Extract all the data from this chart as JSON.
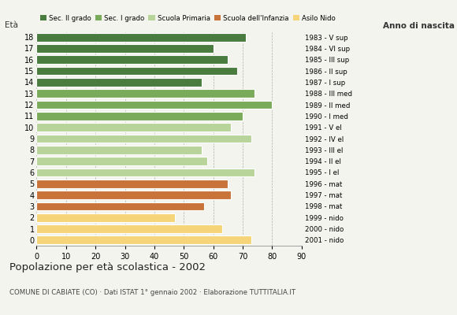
{
  "ages": [
    18,
    17,
    16,
    15,
    14,
    13,
    12,
    11,
    10,
    9,
    8,
    7,
    6,
    5,
    4,
    3,
    2,
    1,
    0
  ],
  "values": [
    71,
    60,
    65,
    68,
    56,
    74,
    80,
    70,
    66,
    73,
    56,
    58,
    74,
    65,
    66,
    57,
    47,
    63,
    73
  ],
  "anno_nascita": [
    "1983 - V sup",
    "1984 - VI sup",
    "1985 - III sup",
    "1986 - II sup",
    "1987 - I sup",
    "1988 - III med",
    "1989 - II med",
    "1990 - I med",
    "1991 - V el",
    "1992 - IV el",
    "1993 - III el",
    "1994 - II el",
    "1995 - I el",
    "1996 - mat",
    "1997 - mat",
    "1998 - mat",
    "1999 - nido",
    "2000 - nido",
    "2001 - nido"
  ],
  "colors": [
    "#4a7c3f",
    "#4a7c3f",
    "#4a7c3f",
    "#4a7c3f",
    "#4a7c3f",
    "#7aab5a",
    "#7aab5a",
    "#7aab5a",
    "#b8d49a",
    "#b8d49a",
    "#b8d49a",
    "#b8d49a",
    "#b8d49a",
    "#c8733a",
    "#c8733a",
    "#c8733a",
    "#f5d47a",
    "#f5d47a",
    "#f5d47a"
  ],
  "legend_labels": [
    "Sec. II grado",
    "Sec. I grado",
    "Scuola Primaria",
    "Scuola dell'Infanzia",
    "Asilo Nido"
  ],
  "legend_colors": [
    "#4a7c3f",
    "#7aab5a",
    "#b8d49a",
    "#c8733a",
    "#f5d47a"
  ],
  "title": "Popolazione per età scolastica - 2002",
  "subtitle": "COMUNE DI CABIATE (CO) · Dati ISTAT 1° gennaio 2002 · Elaborazione TUTTITALIA.IT",
  "eta_label": "Età",
  "anno_label": "Anno di nascita",
  "xlim": [
    0,
    90
  ],
  "xticks": [
    0,
    10,
    20,
    30,
    40,
    50,
    60,
    70,
    80,
    90
  ],
  "bar_height": 0.75,
  "dpi": 100,
  "figsize": [
    5.8,
    4.0
  ],
  "bg_color": "#f4f4ee"
}
